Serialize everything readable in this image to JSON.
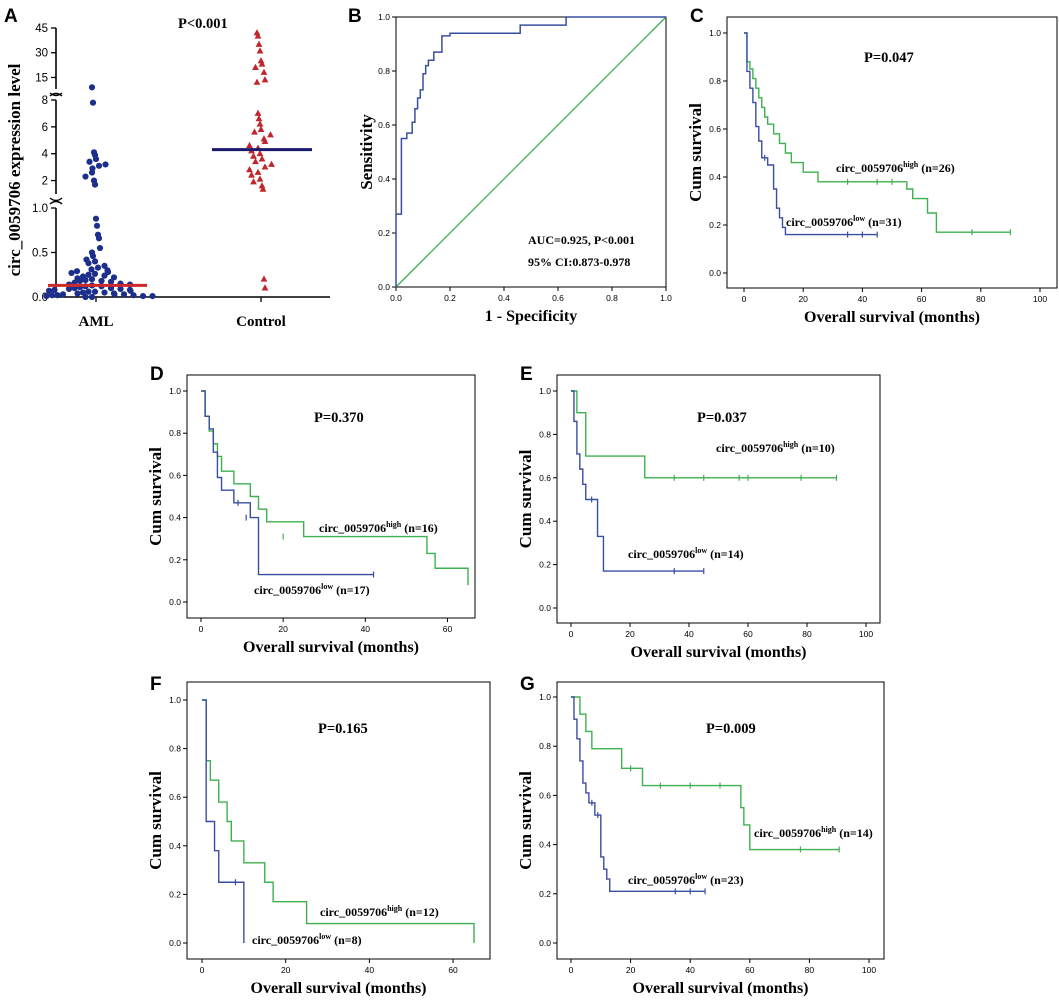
{
  "colors": {
    "low": "#3a4ea0",
    "high": "#3fb04f",
    "aml_points": "#1c2f8c",
    "control_points": "#c0262c",
    "aml_median": "#cc2a2a",
    "control_median": "#1a1a6e",
    "roc_curve": "#3a4ea0",
    "roc_reference": "#3fb04f"
  },
  "chart_data": [
    {
      "id": "A",
      "panel_label": "A",
      "type": "scatter",
      "title": "P<0.001",
      "ylabel": "circ_0059706 expression level",
      "categories": [
        "AML",
        "Control"
      ],
      "y_axis_segments": [
        {
          "ticks": [
            "0.0",
            "0.5",
            "1.0"
          ],
          "range": [
            0,
            1.0
          ]
        },
        {
          "ticks": [
            "2",
            "4",
            "6",
            "8"
          ],
          "range": [
            1.0,
            8
          ]
        },
        {
          "ticks": [
            "15",
            "30",
            "45"
          ],
          "range": [
            8,
            45
          ]
        }
      ],
      "medians": {
        "AML": 0.13,
        "Control": 4.3
      },
      "series": [
        {
          "name": "AML",
          "values": [
            9.0,
            7.8,
            4.1,
            3.9,
            3.6,
            3.4,
            3.2,
            3.1,
            2.9,
            2.6,
            2.3,
            2.0,
            1.7,
            0.88,
            0.8,
            0.7,
            0.66,
            0.55,
            0.5,
            0.46,
            0.42,
            0.4,
            0.38,
            0.35,
            0.33,
            0.31,
            0.3,
            0.29,
            0.28,
            0.27,
            0.26,
            0.25,
            0.24,
            0.23,
            0.22,
            0.21,
            0.2,
            0.19,
            0.18,
            0.18,
            0.17,
            0.16,
            0.15,
            0.14,
            0.14,
            0.13,
            0.12,
            0.12,
            0.11,
            0.1,
            0.1,
            0.09,
            0.09,
            0.08,
            0.08,
            0.07,
            0.07,
            0.06,
            0.06,
            0.05,
            0.05,
            0.04,
            0.04,
            0.03,
            0.03,
            0.03,
            0.02,
            0.02,
            0.02,
            0.01,
            0.01,
            0.01,
            0.0,
            0.0
          ]
        },
        {
          "name": "Control",
          "values": [
            42,
            40,
            35,
            31,
            25,
            23,
            21,
            18,
            13.5,
            12,
            7.0,
            6.6,
            6.2,
            5.8,
            5.6,
            5.4,
            5.1,
            4.9,
            4.6,
            4.4,
            4.2,
            4.0,
            3.8,
            3.6,
            3.4,
            3.2,
            3.0,
            2.8,
            2.6,
            2.4,
            2.1,
            1.9,
            1.6,
            1.35,
            0.2,
            0.1
          ]
        }
      ]
    },
    {
      "id": "B",
      "panel_label": "B",
      "type": "line",
      "xlabel": "1 - Specificity",
      "ylabel": "Sensitivity",
      "xlim": [
        0,
        1
      ],
      "ylim": [
        0,
        1
      ],
      "xticks": [
        "0.0",
        "0.2",
        "0.4",
        "0.6",
        "0.8",
        "1.0"
      ],
      "yticks": [
        "0.0",
        "0.2",
        "0.4",
        "0.6",
        "0.8",
        "1.0"
      ],
      "annotations": [
        "AUC=0.925, P<0.001",
        "95% CI:0.873-0.978"
      ],
      "series": [
        {
          "name": "ROC",
          "x": [
            0,
            0,
            0.02,
            0.02,
            0.04,
            0.04,
            0.06,
            0.06,
            0.07,
            0.07,
            0.08,
            0.08,
            0.09,
            0.09,
            0.1,
            0.1,
            0.11,
            0.11,
            0.12,
            0.12,
            0.14,
            0.14,
            0.17,
            0.17,
            0.2,
            0.2,
            0.46,
            0.46,
            0.63,
            0.63,
            1.0
          ],
          "y": [
            0,
            0.27,
            0.27,
            0.55,
            0.55,
            0.57,
            0.57,
            0.61,
            0.61,
            0.66,
            0.66,
            0.7,
            0.7,
            0.73,
            0.73,
            0.79,
            0.79,
            0.82,
            0.82,
            0.84,
            0.84,
            0.87,
            0.87,
            0.93,
            0.93,
            0.94,
            0.94,
            0.97,
            0.97,
            1.0,
            1.0
          ]
        },
        {
          "name": "Reference",
          "x": [
            0,
            1
          ],
          "y": [
            0,
            1
          ]
        }
      ]
    },
    {
      "id": "C",
      "panel_label": "C",
      "type": "line",
      "xlabel": "Overall survival (months)",
      "ylabel": "Cum survival",
      "pvalue": "P=0.047",
      "xlim": [
        0,
        100
      ],
      "ylim": [
        0,
        1
      ],
      "xticks": [
        "0",
        "20",
        "40",
        "60",
        "80",
        "100"
      ],
      "yticks": [
        "0.0",
        "0.2",
        "0.4",
        "0.6",
        "0.8",
        "1.0"
      ],
      "series": [
        {
          "name": "circ_0059706",
          "sup": "high",
          "n_label": "(n=26)",
          "group": "high",
          "x": [
            0,
            1,
            2,
            3,
            4,
            5,
            6,
            7,
            8,
            10,
            12,
            14,
            16,
            20,
            25,
            55,
            57,
            58,
            62,
            65,
            90
          ],
          "y": [
            1.0,
            0.88,
            0.85,
            0.81,
            0.77,
            0.73,
            0.69,
            0.65,
            0.62,
            0.58,
            0.54,
            0.5,
            0.46,
            0.42,
            0.38,
            0.35,
            0.31,
            0.31,
            0.25,
            0.17,
            0.17
          ],
          "censored": [
            [
              35,
              0.38
            ],
            [
              45,
              0.38
            ],
            [
              50,
              0.38
            ],
            [
              77,
              0.17
            ],
            [
              90,
              0.17
            ]
          ]
        },
        {
          "name": "circ_0059706",
          "sup": "low",
          "n_label": "(n=31)",
          "group": "low",
          "x": [
            0,
            1,
            2,
            3,
            4,
            5,
            6,
            8,
            10,
            11,
            12,
            13,
            14,
            45
          ],
          "y": [
            1.0,
            0.84,
            0.77,
            0.71,
            0.61,
            0.55,
            0.48,
            0.45,
            0.35,
            0.27,
            0.23,
            0.19,
            0.16,
            0.16
          ],
          "censored": [
            [
              7,
              0.48
            ],
            [
              35,
              0.16
            ],
            [
              40,
              0.16
            ],
            [
              45,
              0.16
            ]
          ]
        }
      ]
    },
    {
      "id": "D",
      "panel_label": "D",
      "type": "line",
      "xlabel": "Overall survival (months)",
      "ylabel": "Cum survival",
      "pvalue": "P=0.370",
      "xlim": [
        0,
        65
      ],
      "ylim": [
        0,
        1
      ],
      "xticks": [
        "0",
        "20",
        "40",
        "60"
      ],
      "yticks": [
        "0.0",
        "0.2",
        "0.4",
        "0.6",
        "0.8",
        "1.0"
      ],
      "series": [
        {
          "name": "circ_0059706",
          "sup": "high",
          "n_label": "(n=16)",
          "group": "high",
          "x": [
            0,
            1,
            2,
            3,
            4,
            5,
            8,
            12,
            14,
            16,
            25,
            55,
            57,
            65
          ],
          "y": [
            1.0,
            0.88,
            0.81,
            0.75,
            0.69,
            0.62,
            0.56,
            0.5,
            0.44,
            0.38,
            0.31,
            0.23,
            0.16,
            0.08
          ],
          "censored": [
            [
              20,
              0.31
            ]
          ]
        },
        {
          "name": "circ_0059706",
          "sup": "low",
          "n_label": "(n=17)",
          "group": "low",
          "x": [
            0,
            1,
            2,
            3,
            4,
            5,
            8,
            12,
            14,
            42
          ],
          "y": [
            1.0,
            0.88,
            0.82,
            0.71,
            0.59,
            0.53,
            0.47,
            0.4,
            0.13,
            0.13
          ],
          "censored": [
            [
              9,
              0.47
            ],
            [
              11,
              0.4
            ],
            [
              42,
              0.13
            ]
          ]
        }
      ]
    },
    {
      "id": "E",
      "panel_label": "E",
      "type": "line",
      "xlabel": "Overall survival (months)",
      "ylabel": "Cum survival",
      "pvalue": "P=0.037",
      "xlim": [
        0,
        100
      ],
      "ylim": [
        0,
        1
      ],
      "xticks": [
        "0",
        "20",
        "40",
        "60",
        "80",
        "100"
      ],
      "yticks": [
        "0.0",
        "0.2",
        "0.4",
        "0.6",
        "0.8",
        "1.0"
      ],
      "series": [
        {
          "name": "circ_0059706",
          "sup": "high",
          "n_label": "(n=10)",
          "group": "high",
          "x": [
            0,
            2,
            5,
            25,
            90
          ],
          "y": [
            1.0,
            0.9,
            0.7,
            0.6,
            0.6
          ],
          "censored": [
            [
              35,
              0.6
            ],
            [
              45,
              0.6
            ],
            [
              57,
              0.6
            ],
            [
              60,
              0.6
            ],
            [
              78,
              0.6
            ],
            [
              90,
              0.6
            ]
          ]
        },
        {
          "name": "circ_0059706",
          "sup": "low",
          "n_label": "(n=14)",
          "group": "low",
          "x": [
            0,
            1,
            2,
            3,
            4,
            5,
            9,
            11,
            45
          ],
          "y": [
            1.0,
            0.86,
            0.71,
            0.64,
            0.57,
            0.5,
            0.33,
            0.17,
            0.17
          ],
          "censored": [
            [
              7,
              0.5
            ],
            [
              35,
              0.17
            ],
            [
              45,
              0.17
            ]
          ]
        }
      ]
    },
    {
      "id": "F",
      "panel_label": "F",
      "type": "line",
      "xlabel": "Overall survival (months)",
      "ylabel": "Cum survival",
      "pvalue": "P=0.165",
      "xlim": [
        0,
        65
      ],
      "ylim": [
        0,
        1
      ],
      "xticks": [
        "0",
        "20",
        "40",
        "60"
      ],
      "yticks": [
        "0.0",
        "0.2",
        "0.4",
        "0.6",
        "0.8",
        "1.0"
      ],
      "series": [
        {
          "name": "circ_0059706",
          "sup": "high",
          "n_label": "(n=12)",
          "group": "high",
          "x": [
            0,
            1,
            2,
            4,
            6,
            7,
            10,
            15,
            17,
            25,
            65
          ],
          "y": [
            1.0,
            0.75,
            0.67,
            0.58,
            0.5,
            0.42,
            0.33,
            0.25,
            0.17,
            0.08,
            0.0
          ],
          "censored": []
        },
        {
          "name": "circ_0059706",
          "sup": "low",
          "n_label": "(n=8)",
          "group": "low",
          "x": [
            0,
            1,
            3,
            4,
            10
          ],
          "y": [
            1.0,
            0.5,
            0.38,
            0.25,
            0.0
          ],
          "censored": [
            [
              8,
              0.25
            ]
          ]
        }
      ]
    },
    {
      "id": "G",
      "panel_label": "G",
      "type": "line",
      "xlabel": "Overall survival (months)",
      "ylabel": "Cum survival",
      "pvalue": "P=0.009",
      "xlim": [
        0,
        100
      ],
      "ylim": [
        0,
        1
      ],
      "xticks": [
        "0",
        "20",
        "40",
        "60",
        "80",
        "100"
      ],
      "yticks": [
        "0.0",
        "0.2",
        "0.4",
        "0.6",
        "0.8",
        "1.0"
      ],
      "series": [
        {
          "name": "circ_0059706",
          "sup": "high",
          "n_label": "(n=14)",
          "group": "high",
          "x": [
            0,
            3,
            5,
            7,
            17,
            24,
            57,
            58,
            60,
            90
          ],
          "y": [
            1.0,
            0.93,
            0.86,
            0.79,
            0.71,
            0.64,
            0.55,
            0.48,
            0.38,
            0.38
          ],
          "censored": [
            [
              20,
              0.71
            ],
            [
              30,
              0.64
            ],
            [
              40,
              0.64
            ],
            [
              50,
              0.64
            ],
            [
              77,
              0.38
            ],
            [
              90,
              0.38
            ]
          ]
        },
        {
          "name": "circ_0059706",
          "sup": "low",
          "n_label": "(n=23)",
          "group": "low",
          "x": [
            0,
            1,
            2,
            3,
            4,
            5,
            6,
            8,
            10,
            11,
            12,
            13,
            14,
            45
          ],
          "y": [
            1.0,
            0.91,
            0.83,
            0.74,
            0.65,
            0.61,
            0.57,
            0.52,
            0.35,
            0.3,
            0.26,
            0.21,
            0.21,
            0.21
          ],
          "censored": [
            [
              7,
              0.57
            ],
            [
              9,
              0.52
            ],
            [
              35,
              0.21
            ],
            [
              40,
              0.21
            ],
            [
              45,
              0.21
            ]
          ]
        }
      ]
    }
  ]
}
